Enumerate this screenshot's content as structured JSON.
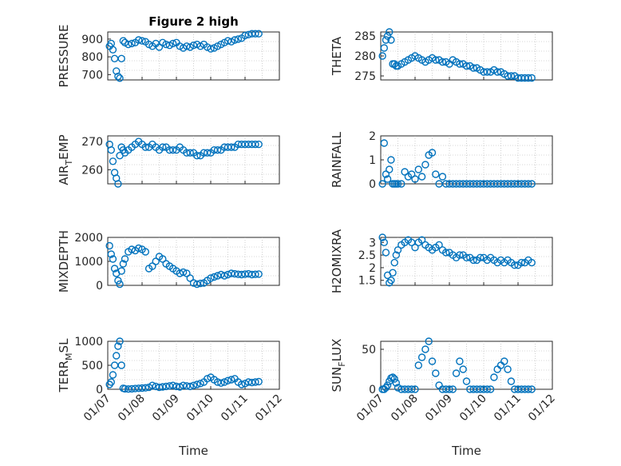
{
  "colors": {
    "marker": "#0072BD",
    "axis": "#262626",
    "grid": "#b0b0b0"
  },
  "chart_data": [
    {
      "type": "scatter",
      "title": "Figure 2 high",
      "ylabel": "PRESSURE",
      "ylim": [
        670,
        940
      ],
      "yticks": [
        700,
        800,
        900
      ],
      "xlim": [
        0,
        5
      ],
      "xticks": [],
      "grid": true,
      "x": [
        0.05,
        0.1,
        0.15,
        0.2,
        0.25,
        0.3,
        0.35,
        0.4,
        0.45,
        0.5,
        0.6,
        0.7,
        0.8,
        0.9,
        1.0,
        1.1,
        1.2,
        1.3,
        1.4,
        1.5,
        1.6,
        1.7,
        1.8,
        1.9,
        2.0,
        2.1,
        2.2,
        2.3,
        2.4,
        2.5,
        2.6,
        2.7,
        2.8,
        2.9,
        3.0,
        3.1,
        3.2,
        3.3,
        3.4,
        3.5,
        3.6,
        3.7,
        3.8,
        3.9,
        4.0,
        4.1,
        4.2,
        4.3,
        4.4
      ],
      "y": [
        860,
        875,
        840,
        790,
        720,
        690,
        680,
        790,
        890,
        880,
        870,
        875,
        880,
        895,
        890,
        885,
        870,
        860,
        875,
        855,
        880,
        870,
        865,
        875,
        880,
        860,
        850,
        860,
        855,
        865,
        870,
        860,
        870,
        855,
        845,
        850,
        860,
        870,
        880,
        890,
        885,
        895,
        900,
        905,
        920,
        925,
        930,
        930,
        930
      ]
    },
    {
      "type": "scatter",
      "ylabel": "THETA",
      "ylim": [
        274,
        286
      ],
      "yticks": [
        275,
        280,
        285
      ],
      "xlim": [
        0,
        5
      ],
      "xticks": [],
      "grid": true,
      "x": [
        0.05,
        0.1,
        0.15,
        0.2,
        0.25,
        0.3,
        0.35,
        0.4,
        0.45,
        0.5,
        0.6,
        0.7,
        0.8,
        0.9,
        1.0,
        1.1,
        1.2,
        1.3,
        1.4,
        1.5,
        1.6,
        1.7,
        1.8,
        1.9,
        2.0,
        2.1,
        2.2,
        2.3,
        2.4,
        2.5,
        2.6,
        2.7,
        2.8,
        2.9,
        3.0,
        3.1,
        3.2,
        3.3,
        3.4,
        3.5,
        3.6,
        3.7,
        3.8,
        3.9,
        4.0,
        4.1,
        4.2,
        4.3,
        4.4
      ],
      "y": [
        280,
        282,
        284,
        285,
        286,
        284,
        278,
        278,
        277.5,
        277.5,
        278,
        278.5,
        279,
        279.5,
        280,
        279.5,
        279,
        278.5,
        279,
        279.5,
        279,
        279,
        278.5,
        278.5,
        278,
        279,
        278.5,
        278,
        278,
        277.5,
        277.5,
        277,
        277,
        276.5,
        276,
        276,
        276,
        276.5,
        276,
        276,
        275.5,
        275,
        275,
        275,
        274.5,
        274.5,
        274.5,
        274.5,
        274.5
      ]
    },
    {
      "type": "scatter",
      "ylabel": "AIR_TEMP",
      "ylim": [
        255,
        272
      ],
      "yticks": [
        260,
        270
      ],
      "xlim": [
        0,
        5
      ],
      "xticks": [],
      "grid": true,
      "x": [
        0.05,
        0.1,
        0.15,
        0.2,
        0.25,
        0.3,
        0.35,
        0.4,
        0.45,
        0.5,
        0.6,
        0.7,
        0.8,
        0.9,
        1.0,
        1.1,
        1.2,
        1.3,
        1.4,
        1.5,
        1.6,
        1.7,
        1.8,
        1.9,
        2.0,
        2.1,
        2.2,
        2.3,
        2.4,
        2.5,
        2.6,
        2.7,
        2.8,
        2.9,
        3.0,
        3.1,
        3.2,
        3.3,
        3.4,
        3.5,
        3.6,
        3.7,
        3.8,
        3.9,
        4.0,
        4.1,
        4.2,
        4.3,
        4.4
      ],
      "y": [
        269,
        267,
        263,
        259,
        257,
        255,
        265,
        268,
        267,
        266,
        267,
        268,
        269,
        270,
        269,
        268,
        268,
        269,
        268,
        267,
        268,
        268,
        267,
        267,
        267,
        268,
        267,
        266,
        266,
        266,
        265,
        265,
        266,
        266,
        266,
        267,
        267,
        267,
        268,
        268,
        268,
        268,
        269,
        269,
        269,
        269,
        269,
        269,
        269
      ]
    },
    {
      "type": "scatter",
      "ylabel": "RAINFALL",
      "ylim": [
        0,
        2
      ],
      "yticks": [
        0,
        1,
        2
      ],
      "xlim": [
        0,
        5
      ],
      "xticks": [],
      "grid": true,
      "x": [
        0.05,
        0.1,
        0.15,
        0.2,
        0.25,
        0.3,
        0.35,
        0.4,
        0.45,
        0.5,
        0.6,
        0.7,
        0.8,
        0.9,
        1.0,
        1.1,
        1.2,
        1.3,
        1.4,
        1.5,
        1.6,
        1.7,
        1.8,
        1.9,
        2.0,
        2.1,
        2.2,
        2.3,
        2.4,
        2.5,
        2.6,
        2.7,
        2.8,
        2.9,
        3.0,
        3.1,
        3.2,
        3.3,
        3.4,
        3.5,
        3.6,
        3.7,
        3.8,
        3.9,
        4.0,
        4.1,
        4.2,
        4.3,
        4.4
      ],
      "y": [
        0,
        1.7,
        0.4,
        0.2,
        0.6,
        1.0,
        0,
        0,
        0,
        0,
        0,
        0.5,
        0.3,
        0.4,
        0.2,
        0.6,
        0.3,
        0.8,
        1.2,
        1.3,
        0.4,
        0,
        0.3,
        0,
        0,
        0,
        0,
        0,
        0,
        0,
        0,
        0,
        0,
        0,
        0,
        0,
        0,
        0,
        0,
        0,
        0,
        0,
        0,
        0,
        0,
        0,
        0,
        0,
        0
      ]
    },
    {
      "type": "scatter",
      "ylabel": "MIXDEPTH",
      "ylim": [
        0,
        2000
      ],
      "yticks": [
        0,
        1000,
        2000
      ],
      "xlim": [
        0,
        5
      ],
      "xticks": [],
      "grid": true,
      "x": [
        0.05,
        0.1,
        0.15,
        0.2,
        0.25,
        0.3,
        0.35,
        0.4,
        0.45,
        0.5,
        0.6,
        0.7,
        0.8,
        0.9,
        1.0,
        1.1,
        1.2,
        1.3,
        1.4,
        1.5,
        1.6,
        1.7,
        1.8,
        1.9,
        2.0,
        2.1,
        2.2,
        2.3,
        2.4,
        2.5,
        2.6,
        2.7,
        2.8,
        2.9,
        3.0,
        3.1,
        3.2,
        3.3,
        3.4,
        3.5,
        3.6,
        3.7,
        3.8,
        3.9,
        4.0,
        4.1,
        4.2,
        4.3,
        4.4
      ],
      "y": [
        1650,
        1300,
        1100,
        700,
        500,
        200,
        50,
        600,
        900,
        1100,
        1400,
        1500,
        1450,
        1550,
        1500,
        1400,
        700,
        800,
        1000,
        1200,
        1100,
        900,
        800,
        700,
        600,
        500,
        550,
        500,
        300,
        100,
        50,
        80,
        100,
        200,
        300,
        350,
        400,
        450,
        400,
        450,
        500,
        480,
        460,
        450,
        470,
        480,
        450,
        460,
        470
      ]
    },
    {
      "type": "scatter",
      "ylabel": "H2OMIXRA",
      "ylim": [
        1.3,
        3.2
      ],
      "yticks": [
        1.5,
        2,
        2.5,
        3
      ],
      "xlim": [
        0,
        5
      ],
      "xticks": [],
      "grid": true,
      "x": [
        0.05,
        0.1,
        0.15,
        0.2,
        0.25,
        0.3,
        0.35,
        0.4,
        0.45,
        0.5,
        0.6,
        0.7,
        0.8,
        0.9,
        1.0,
        1.1,
        1.2,
        1.3,
        1.4,
        1.5,
        1.6,
        1.7,
        1.8,
        1.9,
        2.0,
        2.1,
        2.2,
        2.3,
        2.4,
        2.5,
        2.6,
        2.7,
        2.8,
        2.9,
        3.0,
        3.1,
        3.2,
        3.3,
        3.4,
        3.5,
        3.6,
        3.7,
        3.8,
        3.9,
        4.0,
        4.1,
        4.2,
        4.3,
        4.4
      ],
      "y": [
        3.2,
        3.0,
        2.6,
        1.7,
        1.4,
        1.5,
        1.8,
        2.2,
        2.5,
        2.7,
        2.9,
        3.0,
        3.1,
        3.0,
        2.8,
        3.0,
        3.1,
        2.9,
        2.8,
        2.7,
        2.8,
        2.9,
        2.7,
        2.6,
        2.6,
        2.5,
        2.4,
        2.5,
        2.5,
        2.4,
        2.4,
        2.3,
        2.3,
        2.4,
        2.4,
        2.3,
        2.4,
        2.3,
        2.2,
        2.3,
        2.2,
        2.3,
        2.2,
        2.1,
        2.1,
        2.2,
        2.2,
        2.3,
        2.2
      ]
    },
    {
      "type": "scatter",
      "ylabel": "TERR_MSL",
      "ylim": [
        0,
        1000
      ],
      "yticks": [
        0,
        500,
        1000
      ],
      "xlim": [
        0,
        5
      ],
      "xticks": [
        "01/07",
        "01/08",
        "01/09",
        "01/10",
        "01/11",
        "01/12"
      ],
      "xlabel": "Time",
      "grid": true,
      "x": [
        0.05,
        0.1,
        0.15,
        0.2,
        0.25,
        0.3,
        0.35,
        0.4,
        0.45,
        0.5,
        0.6,
        0.7,
        0.8,
        0.9,
        1.0,
        1.1,
        1.2,
        1.3,
        1.4,
        1.5,
        1.6,
        1.7,
        1.8,
        1.9,
        2.0,
        2.1,
        2.2,
        2.3,
        2.4,
        2.5,
        2.6,
        2.7,
        2.8,
        2.9,
        3.0,
        3.1,
        3.2,
        3.3,
        3.4,
        3.5,
        3.6,
        3.7,
        3.8,
        3.9,
        4.0,
        4.1,
        4.2,
        4.3,
        4.4
      ],
      "y": [
        100,
        150,
        300,
        500,
        700,
        900,
        1000,
        500,
        20,
        10,
        5,
        10,
        15,
        20,
        25,
        30,
        40,
        80,
        60,
        40,
        50,
        60,
        70,
        80,
        60,
        50,
        80,
        70,
        60,
        80,
        100,
        120,
        150,
        220,
        250,
        200,
        150,
        130,
        150,
        180,
        200,
        220,
        150,
        100,
        120,
        150,
        140,
        150,
        160
      ]
    },
    {
      "type": "scatter",
      "ylabel": "SUN_FLUX",
      "ylim": [
        0,
        60
      ],
      "yticks": [
        0,
        50
      ],
      "xlim": [
        0,
        5
      ],
      "xticks": [
        "01/07",
        "01/08",
        "01/09",
        "01/10",
        "01/11",
        "01/12"
      ],
      "xlabel": "Time",
      "grid": true,
      "x": [
        0.05,
        0.1,
        0.15,
        0.2,
        0.25,
        0.3,
        0.35,
        0.4,
        0.45,
        0.5,
        0.6,
        0.7,
        0.8,
        0.9,
        1.0,
        1.1,
        1.2,
        1.3,
        1.4,
        1.5,
        1.6,
        1.7,
        1.8,
        1.9,
        2.0,
        2.1,
        2.2,
        2.3,
        2.4,
        2.5,
        2.6,
        2.7,
        2.8,
        2.9,
        3.0,
        3.1,
        3.2,
        3.3,
        3.4,
        3.5,
        3.6,
        3.7,
        3.8,
        3.9,
        4.0,
        4.1,
        4.2,
        4.3,
        4.4
      ],
      "y": [
        0,
        0,
        2,
        5,
        10,
        14,
        15,
        13,
        8,
        2,
        0,
        0,
        0,
        0,
        0,
        30,
        40,
        50,
        60,
        35,
        20,
        5,
        0,
        0,
        0,
        0,
        20,
        35,
        25,
        10,
        0,
        0,
        0,
        0,
        0,
        0,
        0,
        15,
        25,
        30,
        35,
        25,
        10,
        0,
        0,
        0,
        0,
        0,
        0
      ]
    }
  ]
}
